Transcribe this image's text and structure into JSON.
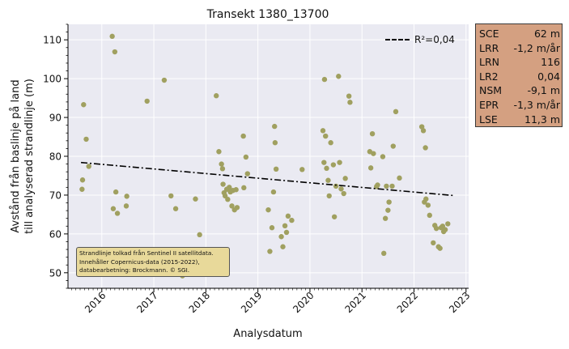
{
  "chart_data": {
    "type": "scatter",
    "title": "Transekt 1380_13700",
    "xlabel": "Analysdatum",
    "ylabel": [
      "Avstånd från baslinje på land",
      "till analyserad strandlinje (m)"
    ],
    "x_ticks": [
      "2016",
      "2017",
      "2018",
      "2019",
      "2020",
      "2021",
      "2022",
      "2023"
    ],
    "y_ticks": [
      50,
      60,
      70,
      80,
      90,
      100,
      110
    ],
    "xlim": [
      2015.35,
      2023.05
    ],
    "ylim": [
      46,
      114
    ],
    "grid": true,
    "legend_position": "top-right",
    "trend_label": "R²=0,04",
    "trend": {
      "x": [
        2015.6,
        2022.75
      ],
      "y": [
        78.4,
        69.9
      ]
    },
    "points_color": "#a0a060",
    "points": [
      [
        2015.62,
        71.5
      ],
      [
        2015.63,
        73.9
      ],
      [
        2015.65,
        93.3
      ],
      [
        2015.7,
        84.4
      ],
      [
        2015.75,
        77.4
      ],
      [
        2016.2,
        110.9
      ],
      [
        2016.22,
        66.5
      ],
      [
        2016.25,
        106.9
      ],
      [
        2016.27,
        70.8
      ],
      [
        2016.3,
        65.3
      ],
      [
        2016.47,
        67.2
      ],
      [
        2016.48,
        69.7
      ],
      [
        2016.87,
        94.2
      ],
      [
        2017.2,
        99.6
      ],
      [
        2017.33,
        69.8
      ],
      [
        2017.42,
        66.5
      ],
      [
        2017.55,
        49.2
      ],
      [
        2017.8,
        69.0
      ],
      [
        2017.88,
        59.8
      ],
      [
        2018.2,
        95.6
      ],
      [
        2018.25,
        81.2
      ],
      [
        2018.3,
        78.0
      ],
      [
        2018.32,
        76.8
      ],
      [
        2018.33,
        72.8
      ],
      [
        2018.35,
        70.6
      ],
      [
        2018.37,
        69.8
      ],
      [
        2018.4,
        71.5
      ],
      [
        2018.42,
        68.9
      ],
      [
        2018.45,
        72.0
      ],
      [
        2018.47,
        70.8
      ],
      [
        2018.5,
        67.2
      ],
      [
        2018.52,
        71.2
      ],
      [
        2018.55,
        66.2
      ],
      [
        2018.58,
        71.4
      ],
      [
        2018.6,
        66.8
      ],
      [
        2018.72,
        85.2
      ],
      [
        2018.73,
        71.9
      ],
      [
        2018.77,
        79.8
      ],
      [
        2018.8,
        75.5
      ],
      [
        2019.2,
        66.2
      ],
      [
        2019.23,
        55.5
      ],
      [
        2019.27,
        61.6
      ],
      [
        2019.3,
        70.8
      ],
      [
        2019.32,
        87.7
      ],
      [
        2019.33,
        83.5
      ],
      [
        2019.35,
        76.7
      ],
      [
        2019.45,
        59.3
      ],
      [
        2019.48,
        56.7
      ],
      [
        2019.52,
        62.1
      ],
      [
        2019.55,
        60.4
      ],
      [
        2019.58,
        64.6
      ],
      [
        2019.65,
        63.5
      ],
      [
        2019.85,
        76.6
      ],
      [
        2020.25,
        86.6
      ],
      [
        2020.27,
        78.4
      ],
      [
        2020.28,
        99.8
      ],
      [
        2020.3,
        85.2
      ],
      [
        2020.32,
        76.9
      ],
      [
        2020.35,
        73.8
      ],
      [
        2020.37,
        69.8
      ],
      [
        2020.4,
        83.5
      ],
      [
        2020.45,
        77.8
      ],
      [
        2020.47,
        64.4
      ],
      [
        2020.5,
        72.3
      ],
      [
        2020.55,
        100.6
      ],
      [
        2020.57,
        78.4
      ],
      [
        2020.6,
        71.6
      ],
      [
        2020.65,
        70.4
      ],
      [
        2020.68,
        74.3
      ],
      [
        2020.75,
        95.5
      ],
      [
        2020.77,
        93.9
      ],
      [
        2021.15,
        81.2
      ],
      [
        2021.17,
        77.0
      ],
      [
        2021.2,
        85.8
      ],
      [
        2021.22,
        80.7
      ],
      [
        2021.28,
        72.2
      ],
      [
        2021.3,
        72.6
      ],
      [
        2021.4,
        79.9
      ],
      [
        2021.42,
        55.0
      ],
      [
        2021.45,
        64.0
      ],
      [
        2021.47,
        72.3
      ],
      [
        2021.5,
        66.1
      ],
      [
        2021.52,
        68.2
      ],
      [
        2021.58,
        72.3
      ],
      [
        2021.6,
        82.6
      ],
      [
        2021.65,
        91.5
      ],
      [
        2021.72,
        74.4
      ],
      [
        2022.15,
        87.6
      ],
      [
        2022.18,
        86.6
      ],
      [
        2022.2,
        68.2
      ],
      [
        2022.22,
        82.2
      ],
      [
        2022.23,
        69.0
      ],
      [
        2022.27,
        67.4
      ],
      [
        2022.3,
        64.8
      ],
      [
        2022.37,
        57.7
      ],
      [
        2022.4,
        62.2
      ],
      [
        2022.43,
        61.4
      ],
      [
        2022.47,
        56.7
      ],
      [
        2022.5,
        56.3
      ],
      [
        2022.52,
        61.6
      ],
      [
        2022.55,
        62.0
      ],
      [
        2022.57,
        60.6
      ],
      [
        2022.6,
        61.1
      ],
      [
        2022.65,
        62.6
      ]
    ]
  },
  "stats": [
    {
      "key": "SCE",
      "value": "62 m"
    },
    {
      "key": "LRR",
      "value": "-1,2 m/år"
    },
    {
      "key": "LRN",
      "value": "116"
    },
    {
      "key": "LR2",
      "value": "0,04"
    },
    {
      "key": "NSM",
      "value": "-9,1 m"
    },
    {
      "key": "EPR",
      "value": "-1,3 m/år"
    },
    {
      "key": "LSE",
      "value": "11,3 m"
    }
  ],
  "credit": [
    "Strandlinje tolkad från Sentinel II satellitdata.",
    "Innehåller Copernicus-data (2015-2022),",
    "databearbetning: Brockmann. © SGI."
  ]
}
